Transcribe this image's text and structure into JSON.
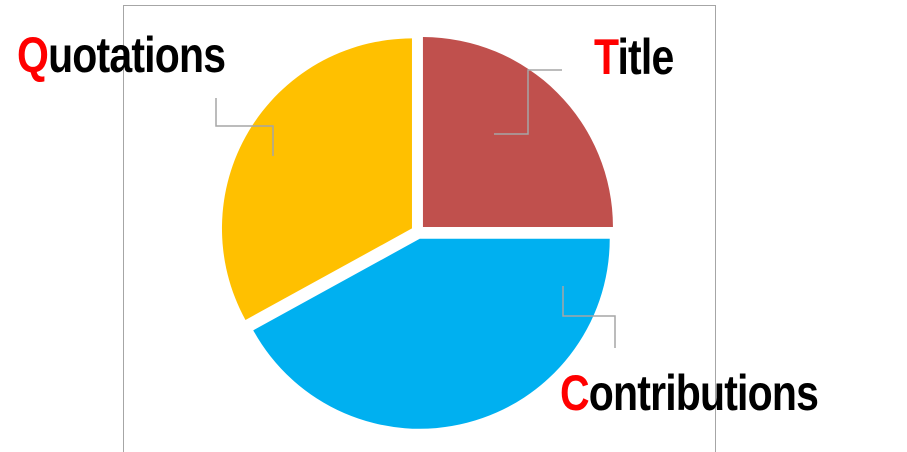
{
  "chart_data": {
    "type": "pie",
    "title": "",
    "legend": "none",
    "slices": [
      {
        "label": "Title",
        "value": 25,
        "color": "#c0504d",
        "initial": "T",
        "rest": "itle"
      },
      {
        "label": "Contributions",
        "value": 42,
        "color": "#00b0f0",
        "initial": "C",
        "rest": "ontributions"
      },
      {
        "label": "Quotations",
        "value": 33,
        "color": "#ffc000",
        "initial": "Q",
        "rest": "uotations"
      }
    ],
    "label_initial_color": "#ff0000",
    "label_color": "#000000",
    "leader_color": "#a6a6a6"
  }
}
